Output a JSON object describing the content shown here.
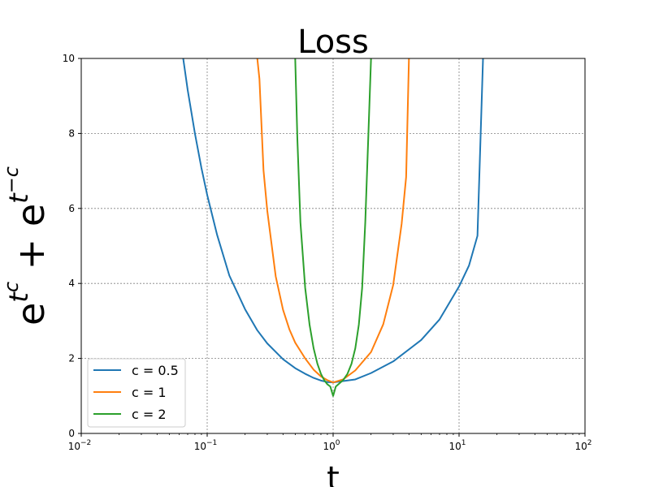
{
  "chart_data": {
    "type": "line",
    "title": "Loss",
    "xlabel": "t",
    "ylabel": "e^{t^c} + e^{t^{-c}}",
    "ylabel_parts": {
      "base1": "e",
      "exp1": "t",
      "supexp1": "c",
      "plus": "+",
      "base2": "e",
      "exp2": "t",
      "supexp2": "−c"
    },
    "xscale": "log",
    "xlim": [
      0.01,
      100
    ],
    "ylim": [
      0,
      10
    ],
    "x_ticks": [
      {
        "base": "10",
        "exp": "−2",
        "value": 0.01
      },
      {
        "base": "10",
        "exp": "−1",
        "value": 0.1
      },
      {
        "base": "10",
        "exp": "0",
        "value": 1
      },
      {
        "base": "10",
        "exp": "1",
        "value": 10
      },
      {
        "base": "10",
        "exp": "2",
        "value": 100
      }
    ],
    "y_ticks": [
      "0",
      "2",
      "4",
      "6",
      "8",
      "10"
    ],
    "grid": true,
    "legend_position": "lower-left",
    "series": [
      {
        "name": "c = 0.5",
        "color": "#1f77b4",
        "points": [
          [
            0.0645,
            10.0
          ],
          [
            0.07,
            9.16
          ],
          [
            0.08,
            7.99
          ],
          [
            0.09,
            7.08
          ],
          [
            0.1,
            6.36
          ],
          [
            0.12,
            5.29
          ],
          [
            0.15,
            4.21
          ],
          [
            0.2,
            3.31
          ],
          [
            0.25,
            2.75
          ],
          [
            0.3,
            2.4
          ],
          [
            0.4,
            1.98
          ],
          [
            0.5,
            1.74
          ],
          [
            0.6,
            1.59
          ],
          [
            0.7,
            1.48
          ],
          [
            0.8,
            1.41
          ],
          [
            0.9,
            1.37
          ],
          [
            1.0,
            1.36
          ],
          [
            1.5,
            1.44
          ],
          [
            2,
            1.61
          ],
          [
            3,
            1.92
          ],
          [
            5,
            2.49
          ],
          [
            7,
            3.04
          ],
          [
            10,
            3.92
          ],
          [
            12,
            4.48
          ],
          [
            14,
            5.27
          ],
          [
            15.5,
            10.0
          ]
        ]
      },
      {
        "name": "c = 1",
        "color": "#ff7f0e",
        "points": [
          [
            0.25,
            10.0
          ],
          [
            0.26,
            9.45
          ],
          [
            0.28,
            7.02
          ],
          [
            0.3,
            5.94
          ],
          [
            0.35,
            4.19
          ],
          [
            0.4,
            3.3
          ],
          [
            0.45,
            2.77
          ],
          [
            0.5,
            2.42
          ],
          [
            0.6,
            2.0
          ],
          [
            0.7,
            1.7
          ],
          [
            0.8,
            1.52
          ],
          [
            0.9,
            1.42
          ],
          [
            1.0,
            1.36
          ],
          [
            1.2,
            1.44
          ],
          [
            1.5,
            1.68
          ],
          [
            2.0,
            2.17
          ],
          [
            2.5,
            2.91
          ],
          [
            3.0,
            3.96
          ],
          [
            3.5,
            5.59
          ],
          [
            3.8,
            6.84
          ],
          [
            4.0,
            10.0
          ]
        ]
      },
      {
        "name": "c = 2",
        "color": "#2ca02c",
        "points": [
          [
            0.5,
            10.0
          ],
          [
            0.52,
            7.86
          ],
          [
            0.55,
            5.63
          ],
          [
            0.6,
            3.88
          ],
          [
            0.65,
            2.9
          ],
          [
            0.7,
            2.27
          ],
          [
            0.75,
            1.86
          ],
          [
            0.8,
            1.59
          ],
          [
            0.85,
            1.42
          ],
          [
            0.9,
            1.31
          ],
          [
            0.95,
            1.25
          ],
          [
            1.0,
            1.0
          ],
          [
            1.05,
            1.25
          ],
          [
            1.1,
            1.31
          ],
          [
            1.2,
            1.42
          ],
          [
            1.3,
            1.59
          ],
          [
            1.4,
            1.86
          ],
          [
            1.5,
            2.27
          ],
          [
            1.6,
            2.9
          ],
          [
            1.7,
            3.88
          ],
          [
            1.8,
            5.63
          ],
          [
            1.9,
            7.86
          ],
          [
            2.0,
            10.0
          ]
        ]
      }
    ]
  }
}
